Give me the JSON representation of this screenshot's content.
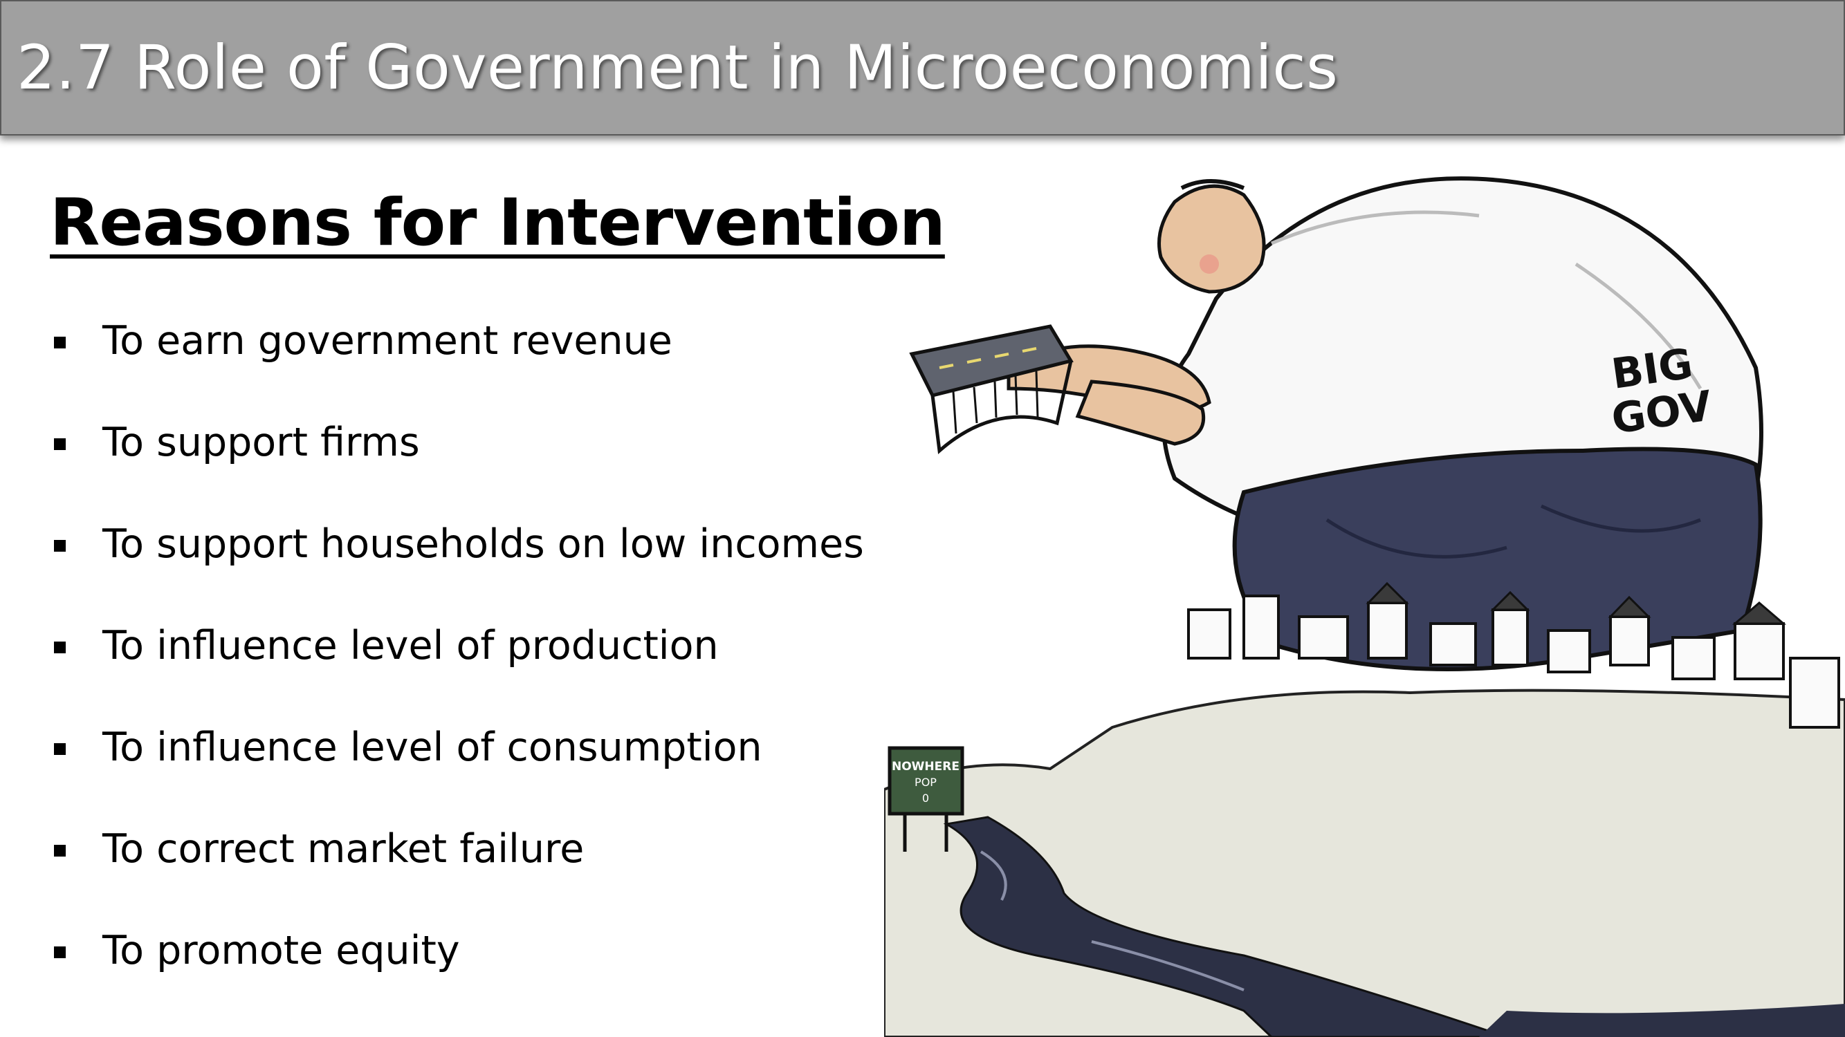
{
  "slide": {
    "title": "2.7 Role of Government in Microeconomics",
    "heading": "Reasons for Intervention",
    "bullets": [
      "To earn government revenue",
      "To support firms",
      "To support households on low incomes",
      "To influence level of production",
      "To influence level of consumption",
      "To correct market failure",
      "To promote equity"
    ]
  },
  "cartoon": {
    "shirt_text_line1": "BIG",
    "shirt_text_line2": "GOV",
    "sign_line1": "NOWHERE",
    "sign_line2": "POP",
    "sign_line3": "0"
  },
  "colors": {
    "title_bar": "#a0a0a0",
    "pants": "#3a3f5c",
    "skin": "#e8c3a0",
    "river": "#2c3045"
  }
}
